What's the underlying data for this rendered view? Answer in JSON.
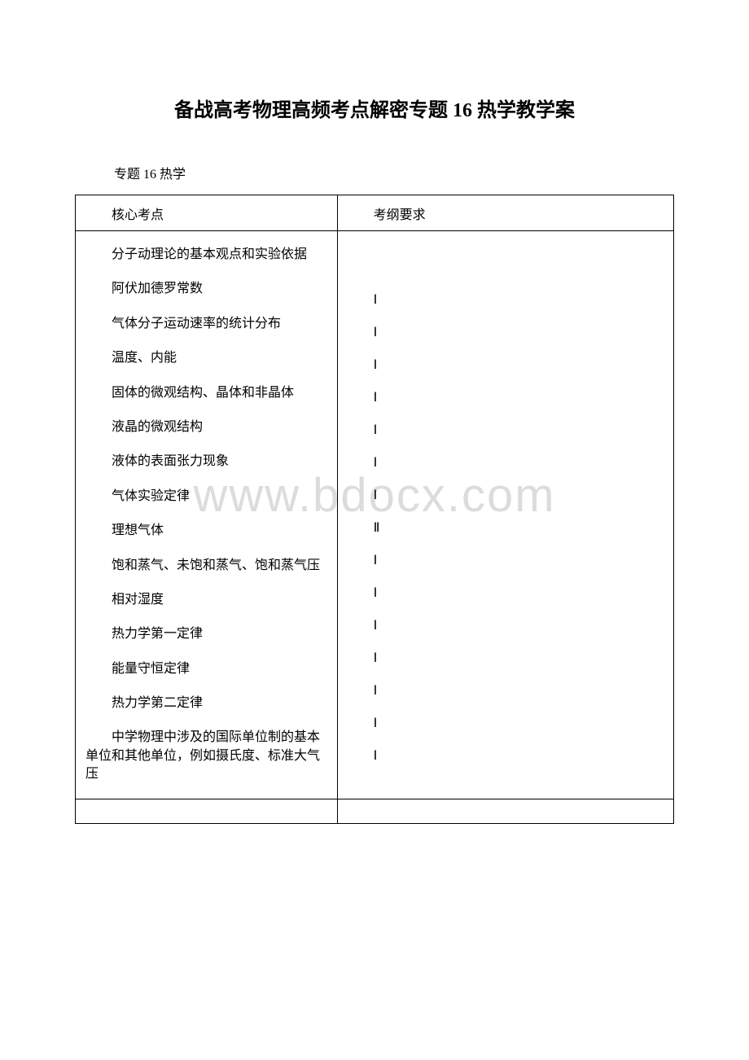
{
  "title": "备战高考物理高频考点解密专题 16 热学教学案",
  "subtitle": "专题 16 热学",
  "watermark": "www.bdocx.com",
  "table": {
    "header": {
      "left": "核心考点",
      "right": "考纲要求"
    },
    "topics": [
      "分子动理论的基本观点和实验依据",
      "阿伏加德罗常数",
      "气体分子运动速率的统计分布",
      "温度、内能",
      "固体的微观结构、晶体和非晶体",
      "液晶的微观结构",
      "液体的表面张力现象",
      "气体实验定律",
      "理想气体",
      "饱和蒸气、未饱和蒸气、饱和蒸气压",
      "相对湿度",
      "热力学第一定律",
      "能量守恒定律",
      "热力学第二定律",
      "中学物理中涉及的国际单位制的基本单位和其他单位，例如摄氏度、标准大气压"
    ],
    "levels": [
      "Ⅰ",
      "Ⅰ",
      "Ⅰ",
      "Ⅰ",
      "Ⅰ",
      "Ⅰ",
      "Ⅰ",
      "Ⅱ",
      "Ⅰ",
      "Ⅰ",
      "Ⅰ",
      "Ⅰ",
      "Ⅰ",
      "Ⅰ",
      "Ⅰ"
    ]
  }
}
